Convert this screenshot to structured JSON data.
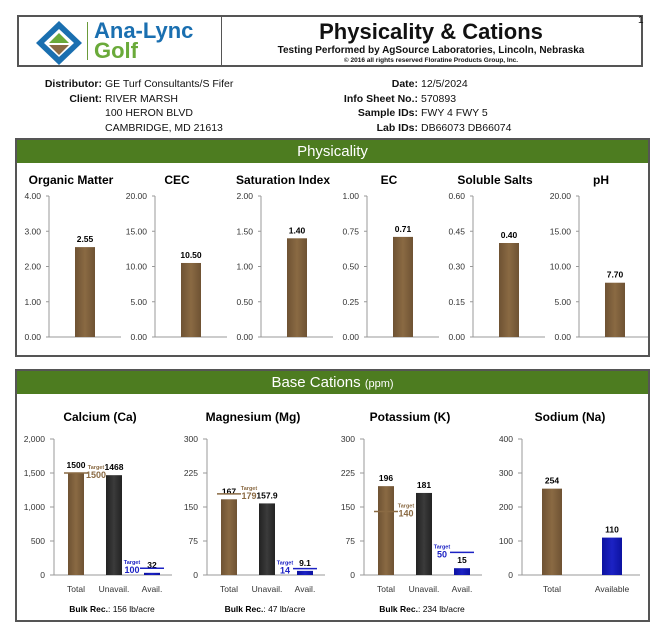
{
  "header": {
    "logo_line1": "Ana-Lync",
    "logo_line2": "Golf",
    "title": "Physicality & Cations",
    "subtitle": "Testing Performed by AgSource Laboratories, Lincoln, Nebraska",
    "copyright": "© 2016 all rights reserved Floratine Products Group, Inc.",
    "page_number": "1"
  },
  "info": {
    "distributor_label": "Distributor:",
    "distributor": "GE Turf Consultants/S Fifer",
    "client_label": "Client:",
    "client": "RIVER MARSH",
    "address1": "100 HERON BLVD",
    "address2": "CAMBRIDGE, MD 21613",
    "date_label": "Date:",
    "date": "12/5/2024",
    "sheet_label": "Info Sheet No.:",
    "sheet": "570893",
    "sample_label": "Sample IDs:",
    "sample": "FWY 4 FWY 5",
    "lab_label": "Lab IDs:",
    "lab": "DB66073 DB66074"
  },
  "colors": {
    "brown": "#8a6a43",
    "dark": "#3b3b3b",
    "blue": "#1c22c4",
    "green": "#4d7c20"
  },
  "physicality": {
    "title": "Physicality",
    "charts": [
      {
        "title": "Organic Matter",
        "ticks": [
          "0.00",
          "1.00",
          "2.00",
          "3.00",
          "4.00"
        ],
        "ymax": 4,
        "value": 2.55,
        "label": "2.55"
      },
      {
        "title": "CEC",
        "ticks": [
          "0.00",
          "5.00",
          "10.00",
          "15.00",
          "20.00"
        ],
        "ymax": 20,
        "value": 10.5,
        "label": "10.50"
      },
      {
        "title": "Saturation Index",
        "ticks": [
          "0.00",
          "0.50",
          "1.00",
          "1.50",
          "2.00"
        ],
        "ymax": 2,
        "value": 1.4,
        "label": "1.40"
      },
      {
        "title": "EC",
        "ticks": [
          "0.00",
          "0.25",
          "0.50",
          "0.75",
          "1.00"
        ],
        "ymax": 1,
        "value": 0.71,
        "label": "0.71"
      },
      {
        "title": "Soluble Salts",
        "ticks": [
          "0.00",
          "0.15",
          "0.30",
          "0.45",
          "0.60"
        ],
        "ymax": 0.6,
        "value": 0.4,
        "label": "0.40"
      },
      {
        "title": "pH",
        "ticks": [
          "0.00",
          "5.00",
          "10.00",
          "15.00",
          "20.00"
        ],
        "ymax": 20,
        "value": 7.7,
        "label": "7.70"
      }
    ]
  },
  "cations": {
    "title": "Base Cations",
    "unit": "(ppm)",
    "bulk_label": "Bulk Rec.",
    "charts": [
      {
        "title": "Calcium (Ca)",
        "ticks": [
          "0",
          "500",
          "1,000",
          "1,500",
          "2,000"
        ],
        "ymax": 2000,
        "bulk": ": 156 lb/acre",
        "bars": [
          {
            "label": "Total",
            "value": 1500,
            "vlabel": "1500",
            "color": "brown"
          },
          {
            "label": "Unavail.",
            "value": 1468,
            "vlabel": "1468",
            "color": "dark"
          },
          {
            "label": "Avail.",
            "value": 32,
            "vlabel": "32",
            "color": "blue"
          }
        ],
        "targets": [
          {
            "bar": 0,
            "value": 1500,
            "word": "Target",
            "label": "1500",
            "side": "right",
            "color": "brown"
          },
          {
            "bar": 2,
            "value": 100,
            "word": "Target",
            "label": "100",
            "side": "left",
            "color": "blue"
          }
        ]
      },
      {
        "title": "Magnesium (Mg)",
        "ticks": [
          "0",
          "75",
          "150",
          "225",
          "300"
        ],
        "ymax": 300,
        "bulk": ": 47 lb/acre",
        "bars": [
          {
            "label": "Total",
            "value": 167,
            "vlabel": "167",
            "color": "brown"
          },
          {
            "label": "Unavail.",
            "value": 157.9,
            "vlabel": "157.9",
            "color": "dark"
          },
          {
            "label": "Avail.",
            "value": 9.1,
            "vlabel": "9.1",
            "color": "blue"
          }
        ],
        "targets": [
          {
            "bar": 0,
            "value": 179,
            "word": "Target",
            "label": "179",
            "side": "right",
            "color": "brown"
          },
          {
            "bar": 2,
            "value": 14,
            "word": "Target",
            "label": "14",
            "side": "left",
            "color": "blue"
          }
        ]
      },
      {
        "title": "Potassium (K)",
        "ticks": [
          "0",
          "75",
          "150",
          "225",
          "300"
        ],
        "ymax": 300,
        "bulk": ": 234 lb/acre",
        "bars": [
          {
            "label": "Total",
            "value": 196,
            "vlabel": "196",
            "color": "brown"
          },
          {
            "label": "Unavail.",
            "value": 181,
            "vlabel": "181",
            "color": "dark"
          },
          {
            "label": "Avail.",
            "value": 15,
            "vlabel": "15",
            "color": "blue"
          }
        ],
        "targets": [
          {
            "bar": 0,
            "value": 140,
            "word": "Target",
            "label": "140",
            "side": "right",
            "color": "brown"
          },
          {
            "bar": 2,
            "value": 50,
            "word": "Target",
            "label": "50",
            "side": "left",
            "color": "blue"
          }
        ]
      },
      {
        "title": "Sodium (Na)",
        "ticks": [
          "0",
          "100",
          "200",
          "300",
          "400"
        ],
        "ymax": 400,
        "bulk": null,
        "bars": [
          {
            "label": "Total",
            "value": 254,
            "vlabel": "254",
            "color": "brown"
          },
          {
            "label": "Available",
            "value": 110,
            "vlabel": "110",
            "color": "blue"
          }
        ],
        "targets": []
      }
    ]
  }
}
